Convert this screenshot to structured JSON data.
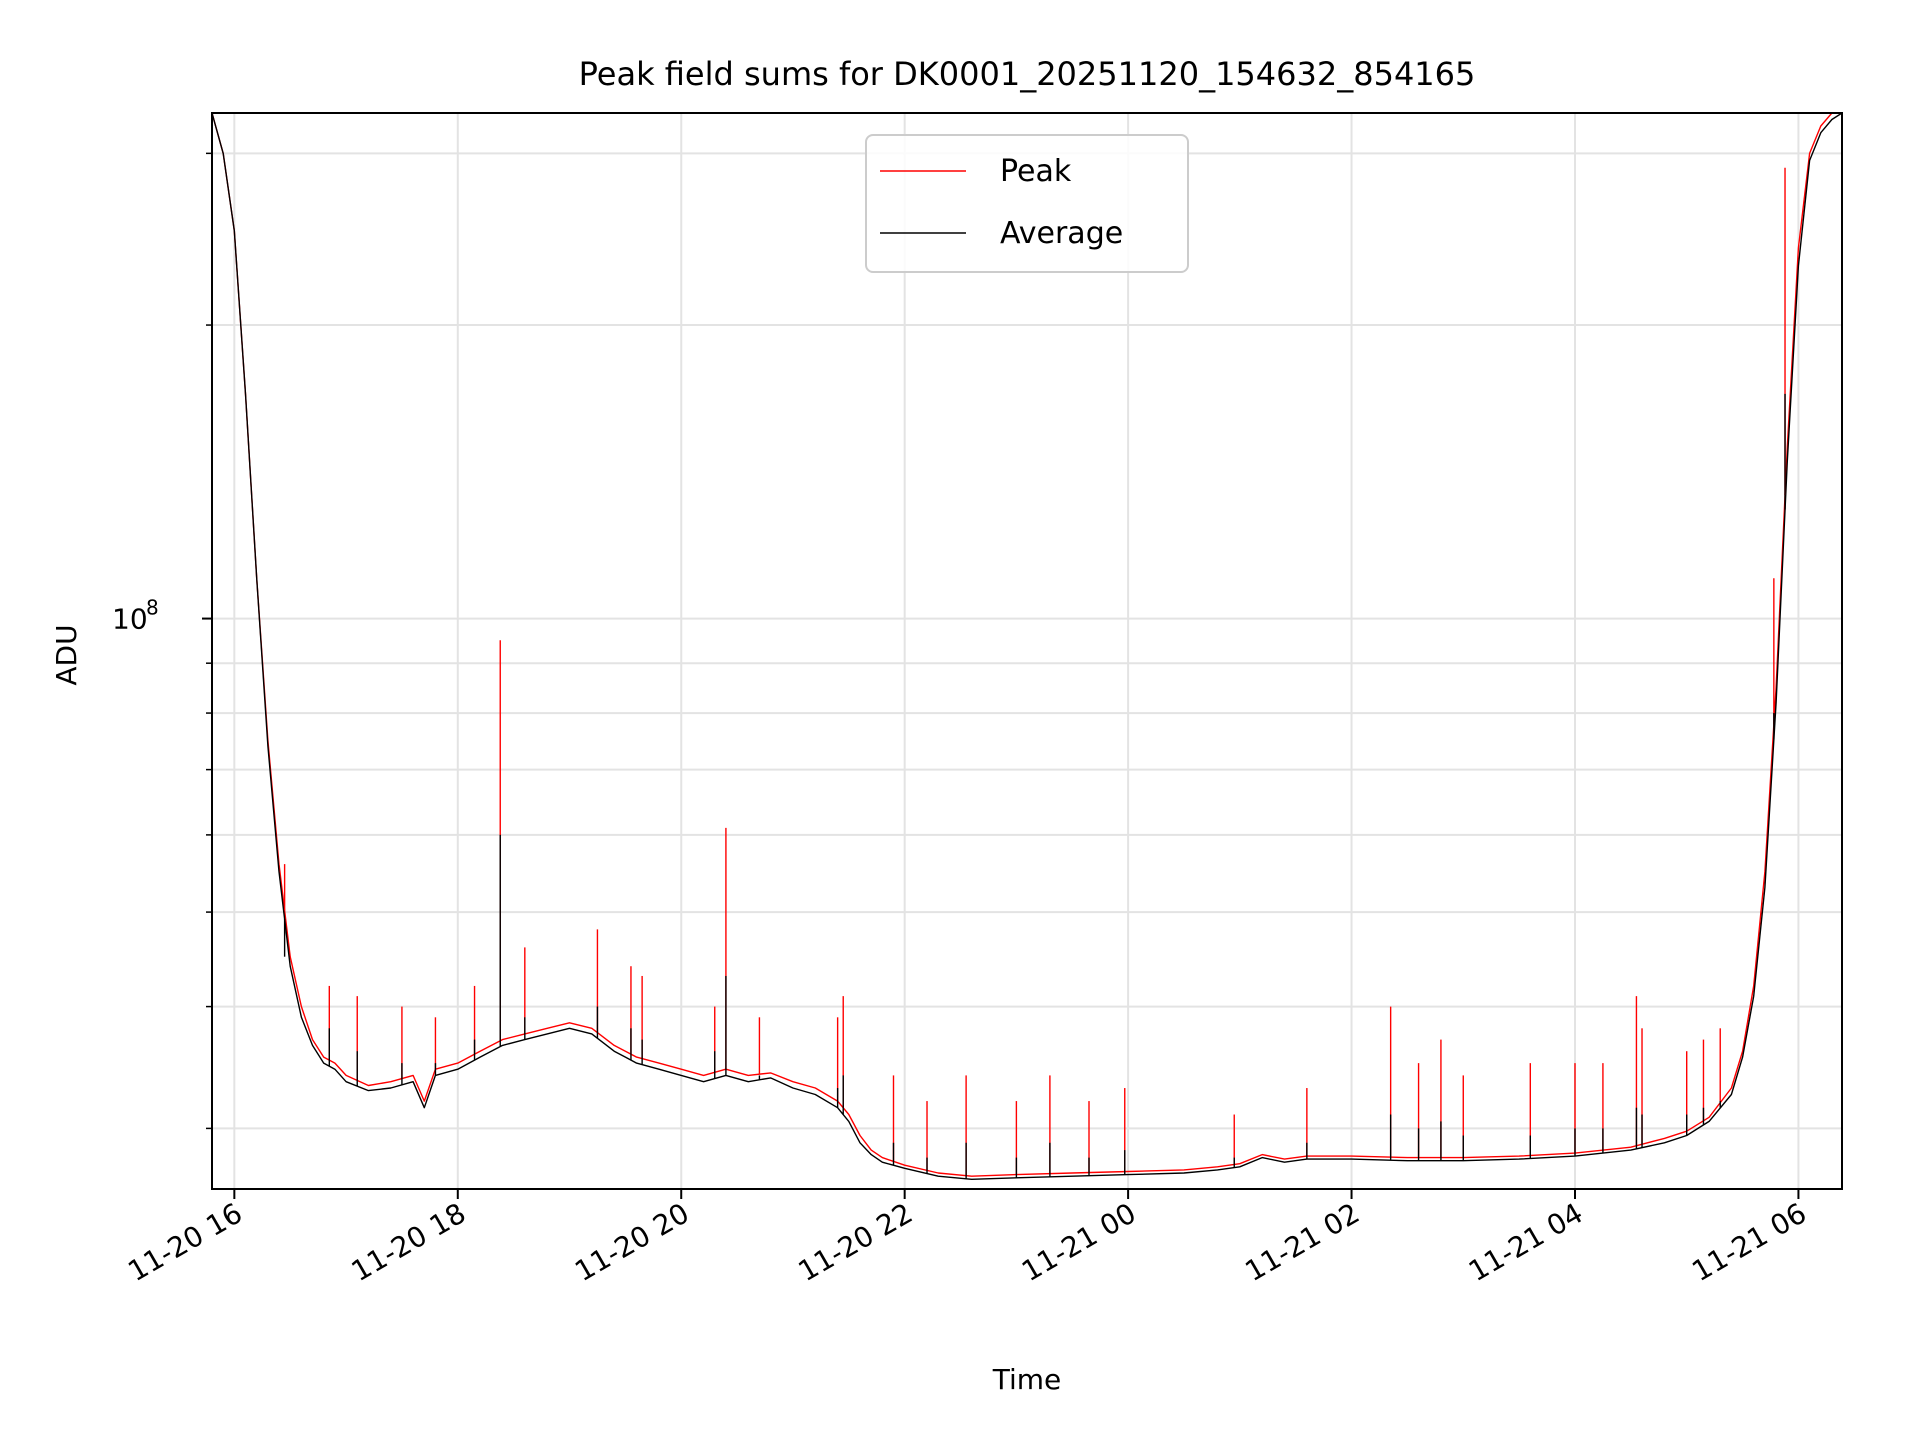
{
  "chart_data": {
    "type": "line",
    "title": "Peak field sums for DK0001_20251120_154632_854165",
    "xlabel": "Time",
    "ylabel": "ADU",
    "yscale": "log",
    "grid": true,
    "legend_position": "top-center",
    "x_unit": "hours since 2025-11-20 00:00",
    "xlim": [
      15.8,
      30.39
    ],
    "ylim": [
      26000000,
      330000000
    ],
    "x_ticks": [
      {
        "value": 16,
        "label": "11-20 16"
      },
      {
        "value": 18,
        "label": "11-20 18"
      },
      {
        "value": 20,
        "label": "11-20 20"
      },
      {
        "value": 22,
        "label": "11-20 22"
      },
      {
        "value": 24,
        "label": "11-21 00"
      },
      {
        "value": 26,
        "label": "11-21 02"
      },
      {
        "value": 28,
        "label": "11-21 04"
      },
      {
        "value": 30,
        "label": "11-21 06"
      }
    ],
    "y_major_ticks": [
      {
        "value": 100000000,
        "base": "10",
        "exp": "8"
      }
    ],
    "y_minor_ticks": [
      30000000,
      40000000,
      50000000,
      60000000,
      70000000,
      80000000,
      90000000,
      200000000,
      300000000
    ],
    "series": [
      {
        "name": "Peak",
        "color": "#ff0000",
        "x": [
          15.8,
          15.9,
          16.0,
          16.1,
          16.2,
          16.3,
          16.4,
          16.5,
          16.6,
          16.7,
          16.8,
          16.9,
          17.0,
          17.2,
          17.4,
          17.6,
          17.7,
          17.8,
          18.0,
          18.2,
          18.4,
          18.6,
          18.8,
          19.0,
          19.2,
          19.4,
          19.5,
          19.6,
          19.8,
          20.0,
          20.2,
          20.4,
          20.6,
          20.8,
          21.0,
          21.2,
          21.4,
          21.5,
          21.6,
          21.7,
          21.8,
          22.0,
          22.3,
          22.6,
          23.0,
          23.5,
          24.0,
          24.5,
          24.8,
          25.0,
          25.2,
          25.4,
          25.6,
          26.0,
          26.5,
          27.0,
          27.5,
          28.0,
          28.5,
          28.8,
          29.0,
          29.2,
          29.4,
          29.5,
          29.6,
          29.7,
          29.8,
          29.9,
          30.0,
          30.1,
          30.2,
          30.3,
          30.39
        ],
        "y": [
          330000000,
          300000000,
          250000000,
          170000000,
          110000000,
          75000000,
          56000000,
          45000000,
          40000000,
          37000000,
          35500000,
          35000000,
          34000000,
          33200000,
          33500000,
          34000000,
          32000000,
          34500000,
          35000000,
          36000000,
          37000000,
          37500000,
          38000000,
          38500000,
          38000000,
          36500000,
          36000000,
          35500000,
          35000000,
          34500000,
          34000000,
          34500000,
          34000000,
          34200000,
          33500000,
          33000000,
          32000000,
          31000000,
          29500000,
          28500000,
          28000000,
          27500000,
          27000000,
          26800000,
          26900000,
          27000000,
          27100000,
          27200000,
          27400000,
          27600000,
          28200000,
          27900000,
          28100000,
          28100000,
          28000000,
          28000000,
          28100000,
          28300000,
          28700000,
          29300000,
          29800000,
          30800000,
          33000000,
          36000000,
          42000000,
          55000000,
          85000000,
          150000000,
          240000000,
          300000000,
          320000000,
          330000000,
          330000000
        ]
      },
      {
        "name": "Average",
        "color": "#000000",
        "x": [
          15.8,
          15.9,
          16.0,
          16.1,
          16.2,
          16.3,
          16.4,
          16.5,
          16.6,
          16.7,
          16.8,
          16.9,
          17.0,
          17.2,
          17.4,
          17.6,
          17.7,
          17.8,
          18.0,
          18.2,
          18.4,
          18.6,
          18.8,
          19.0,
          19.2,
          19.4,
          19.5,
          19.6,
          19.8,
          20.0,
          20.2,
          20.4,
          20.6,
          20.8,
          21.0,
          21.2,
          21.4,
          21.5,
          21.6,
          21.7,
          21.8,
          22.0,
          22.3,
          22.6,
          23.0,
          23.5,
          24.0,
          24.5,
          24.8,
          25.0,
          25.2,
          25.4,
          25.6,
          26.0,
          26.5,
          27.0,
          27.5,
          28.0,
          28.5,
          28.8,
          29.0,
          29.2,
          29.4,
          29.5,
          29.6,
          29.7,
          29.8,
          29.9,
          30.0,
          30.1,
          30.2,
          30.3,
          30.39
        ],
        "y": [
          330000000,
          300000000,
          250000000,
          170000000,
          110000000,
          74000000,
          55000000,
          44000000,
          39000000,
          36500000,
          35000000,
          34500000,
          33500000,
          32800000,
          33000000,
          33500000,
          31500000,
          34000000,
          34500000,
          35500000,
          36500000,
          37000000,
          37500000,
          38000000,
          37500000,
          36000000,
          35500000,
          35000000,
          34500000,
          34000000,
          33500000,
          34000000,
          33500000,
          33800000,
          33000000,
          32500000,
          31500000,
          30500000,
          29000000,
          28200000,
          27700000,
          27300000,
          26800000,
          26600000,
          26700000,
          26800000,
          26900000,
          27000000,
          27200000,
          27400000,
          28000000,
          27700000,
          27900000,
          27900000,
          27800000,
          27800000,
          27900000,
          28100000,
          28500000,
          29000000,
          29500000,
          30500000,
          32500000,
          35500000,
          41000000,
          53000000,
          82000000,
          145000000,
          230000000,
          295000000,
          315000000,
          325000000,
          330000000
        ]
      }
    ],
    "spikes": [
      {
        "x": 16.45,
        "peak": 56000000,
        "avg": 45000000
      },
      {
        "x": 16.85,
        "peak": 42000000,
        "avg": 38000000
      },
      {
        "x": 17.1,
        "peak": 41000000,
        "avg": 36000000
      },
      {
        "x": 17.5,
        "peak": 40000000,
        "avg": 35000000
      },
      {
        "x": 17.8,
        "peak": 39000000,
        "avg": 35000000
      },
      {
        "x": 18.15,
        "peak": 42000000,
        "avg": 37000000
      },
      {
        "x": 18.38,
        "peak": 95000000,
        "avg": 60000000
      },
      {
        "x": 18.6,
        "peak": 46000000,
        "avg": 39000000
      },
      {
        "x": 19.25,
        "peak": 48000000,
        "avg": 40000000
      },
      {
        "x": 19.55,
        "peak": 44000000,
        "avg": 38000000
      },
      {
        "x": 19.65,
        "peak": 43000000,
        "avg": 37000000
      },
      {
        "x": 20.3,
        "peak": 40000000,
        "avg": 36000000
      },
      {
        "x": 20.4,
        "peak": 61000000,
        "avg": 43000000
      },
      {
        "x": 20.7,
        "peak": 39000000,
        "avg": 34000000
      },
      {
        "x": 21.4,
        "peak": 39000000,
        "avg": 33000000
      },
      {
        "x": 21.45,
        "peak": 41000000,
        "avg": 34000000
      },
      {
        "x": 21.9,
        "peak": 34000000,
        "avg": 29000000
      },
      {
        "x": 22.2,
        "peak": 32000000,
        "avg": 28000000
      },
      {
        "x": 22.55,
        "peak": 34000000,
        "avg": 29000000
      },
      {
        "x": 23.0,
        "peak": 32000000,
        "avg": 28000000
      },
      {
        "x": 23.3,
        "peak": 34000000,
        "avg": 29000000
      },
      {
        "x": 23.65,
        "peak": 32000000,
        "avg": 28000000
      },
      {
        "x": 23.97,
        "peak": 33000000,
        "avg": 28500000
      },
      {
        "x": 24.95,
        "peak": 31000000,
        "avg": 28000000
      },
      {
        "x": 25.6,
        "peak": 33000000,
        "avg": 29000000
      },
      {
        "x": 26.35,
        "peak": 40000000,
        "avg": 31000000
      },
      {
        "x": 26.6,
        "peak": 35000000,
        "avg": 30000000
      },
      {
        "x": 26.8,
        "peak": 37000000,
        "avg": 30500000
      },
      {
        "x": 27.0,
        "peak": 34000000,
        "avg": 29500000
      },
      {
        "x": 27.6,
        "peak": 35000000,
        "avg": 29500000
      },
      {
        "x": 28.0,
        "peak": 35000000,
        "avg": 30000000
      },
      {
        "x": 28.25,
        "peak": 35000000,
        "avg": 30000000
      },
      {
        "x": 28.55,
        "peak": 41000000,
        "avg": 31500000
      },
      {
        "x": 28.6,
        "peak": 38000000,
        "avg": 31000000
      },
      {
        "x": 29.0,
        "peak": 36000000,
        "avg": 31000000
      },
      {
        "x": 29.15,
        "peak": 37000000,
        "avg": 31500000
      },
      {
        "x": 29.3,
        "peak": 38000000,
        "avg": 32000000
      },
      {
        "x": 29.78,
        "peak": 110000000,
        "avg": 80000000
      },
      {
        "x": 29.88,
        "peak": 290000000,
        "avg": 170000000
      }
    ]
  }
}
